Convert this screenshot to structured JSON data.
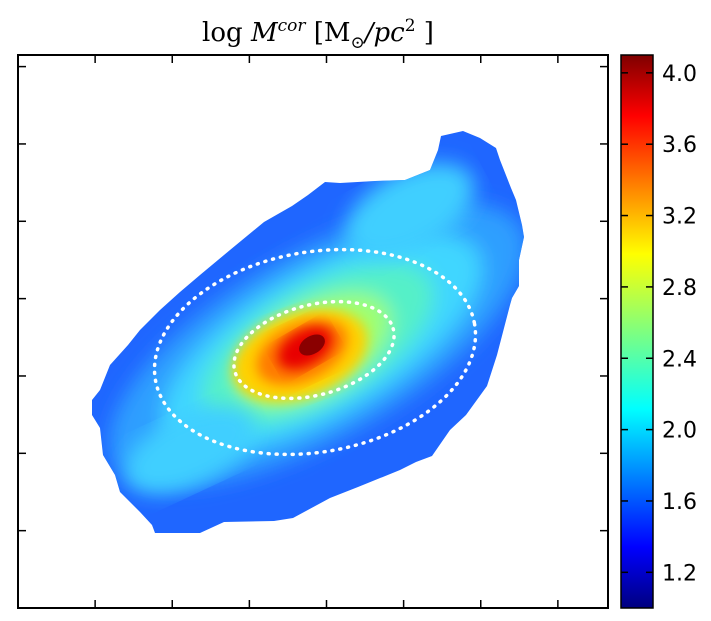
{
  "chart_data": {
    "type": "heatmap",
    "title": {
      "prefix": "log ",
      "symbol": "M",
      "superscript": "cor",
      "units_open": " [M",
      "units_sub": "⊙",
      "units_mid": "/pc",
      "units_sup": "2",
      "units_close": " ]"
    },
    "xlabel": "",
    "ylabel": "",
    "x_tick_labels": [],
    "y_tick_labels": [],
    "colorbar": {
      "colormap": "jet",
      "range": [
        1.0,
        4.1
      ],
      "ticks": [
        "1.2",
        "1.6",
        "2.0",
        "2.4",
        "2.8",
        "3.2",
        "3.6",
        "4.0"
      ],
      "tick_values": [
        1.2,
        1.6,
        2.0,
        2.4,
        2.8,
        3.2,
        3.6,
        4.0
      ]
    },
    "map_description": {
      "structure": "inclined disk galaxy, major axis tilted about 30 degrees from horizontal",
      "center_value": 4.0,
      "inner_region_value": 3.3,
      "middle_disk_value": 2.4,
      "outer_edge_value": 1.4,
      "side_lobe_values": [
        2.1,
        2.2
      ]
    },
    "ellipses": [
      {
        "label": "inner",
        "style": "white dotted"
      },
      {
        "label": "outer",
        "style": "white dotted"
      }
    ],
    "grid": false,
    "legend": "colorbar right"
  }
}
